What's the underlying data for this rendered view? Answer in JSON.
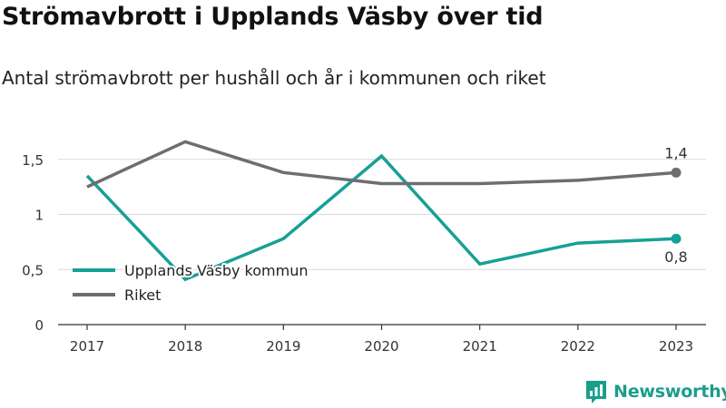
{
  "header": {
    "title": "Strömavbrott i Upplands Väsby över tid",
    "subtitle": "Antal strömavbrott per hushåll och år i kommunen och riket"
  },
  "brand": {
    "name": "Newsworthy",
    "logo_icon": "bar-chart-badge-icon",
    "color": "#1a9e8c"
  },
  "chart_data": {
    "type": "line",
    "title": "Strömavbrott i Upplands Väsby över tid",
    "subtitle": "Antal strömavbrott per hushåll och år i kommunen och riket",
    "x": [
      "2017",
      "2018",
      "2019",
      "2020",
      "2021",
      "2022",
      "2023"
    ],
    "ylim": [
      0,
      1.8
    ],
    "yticks": [
      0,
      0.5,
      1,
      1.5
    ],
    "ytick_labels": [
      "0",
      "0,5",
      "1",
      "1,5"
    ],
    "grid": "horizontal",
    "legend": "lower-left",
    "series": [
      {
        "name": "Upplands Väsby kommun",
        "color": "#17a096",
        "values": [
          1.35,
          0.41,
          0.78,
          1.53,
          0.55,
          0.74,
          0.78
        ],
        "end_label": "0,8",
        "end_label_position": "below"
      },
      {
        "name": "Riket",
        "color": "#6e6d73",
        "values": [
          1.25,
          1.66,
          1.38,
          1.28,
          1.28,
          1.31,
          1.38
        ],
        "end_label": "1,4",
        "end_label_position": "above"
      }
    ]
  }
}
